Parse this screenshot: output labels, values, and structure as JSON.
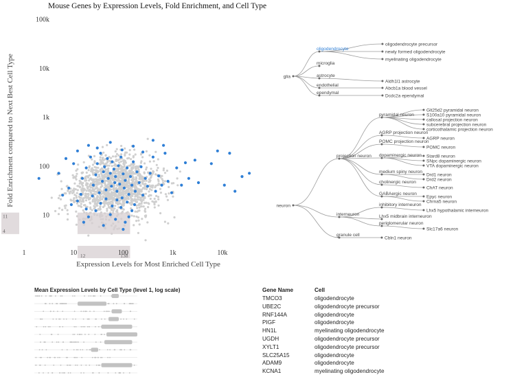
{
  "title": "Mouse Genes by Expression Levels, Fold Enrichment, and Cell Type",
  "chart_data": [
    {
      "type": "scatter",
      "xlabel": "Expression Levels for Most Enriched Cell Type",
      "ylabel": "Fold Enrichment compared to Next Best Cell Type",
      "x_scale": "log",
      "y_scale": "log",
      "xlim": [
        0.8,
        60000
      ],
      "ylim": [
        2.3,
        150000
      ],
      "x_ticks": [
        "1",
        "10",
        "100",
        "1k",
        "10k"
      ],
      "y_ticks": [
        "100k",
        "10k",
        "1k",
        "100",
        "10"
      ],
      "brush": {
        "x": [
          12,
          138
        ],
        "y": [
          4,
          11
        ],
        "x_labels": [
          "12",
          "138"
        ],
        "y_labels": [
          "11",
          "4"
        ]
      },
      "colors": {
        "background_points": "#cfcfcf",
        "highlighted_points": "#2f7fd6",
        "brush": "#d7cfd1"
      },
      "series": [
        {
          "name": "",
          "points": [
            [
              12,
              19
            ],
            [
              15,
              55
            ],
            [
              18,
              90
            ],
            [
              22,
              150
            ],
            [
              25,
              40
            ],
            [
              28,
              65
            ],
            [
              30,
              110
            ],
            [
              33,
              28
            ],
            [
              35,
              180
            ],
            [
              38,
              48
            ],
            [
              40,
              75
            ],
            [
              42,
              95
            ],
            [
              45,
              32
            ],
            [
              48,
              140
            ],
            [
              50,
              55
            ],
            [
              55,
              70
            ],
            [
              58,
              38
            ],
            [
              60,
              120
            ],
            [
              65,
              85
            ],
            [
              68,
              45
            ],
            [
              70,
              60
            ],
            [
              75,
              30
            ],
            [
              80,
              100
            ],
            [
              85,
              42
            ],
            [
              90,
              150
            ],
            [
              95,
              22
            ],
            [
              100,
              68
            ],
            [
              105,
              35
            ],
            [
              110,
              50
            ],
            [
              120,
              90
            ],
            [
              130,
              26
            ],
            [
              140,
              60
            ],
            [
              150,
              40
            ],
            [
              160,
              120
            ],
            [
              175,
              30
            ],
            [
              190,
              75
            ],
            [
              210,
              45
            ],
            [
              230,
              95
            ],
            [
              250,
              25
            ],
            [
              280,
              55
            ],
            [
              310,
              38
            ],
            [
              350,
              70
            ],
            [
              400,
              150
            ],
            [
              450,
              30
            ],
            [
              520,
              62
            ],
            [
              600,
              40
            ],
            [
              700,
              180
            ],
            [
              800,
              48
            ],
            [
              950,
              28
            ],
            [
              1200,
              90
            ],
            [
              1500,
              40
            ],
            [
              1800,
              115
            ],
            [
              2100,
              55
            ],
            [
              2800,
              130
            ],
            [
              3300,
              45
            ],
            [
              6000,
              110
            ],
            [
              8000,
              200
            ],
            [
              18000,
              30
            ],
            [
              25000,
              60
            ],
            [
              35000,
              70
            ],
            [
              2,
              55
            ],
            [
              5,
              70
            ],
            [
              8,
              35
            ],
            [
              10,
              110
            ],
            [
              6,
              25
            ],
            [
              9,
              16
            ],
            [
              16,
              7
            ],
            [
              20,
              9
            ],
            [
              28,
              12
            ],
            [
              40,
              6
            ],
            [
              55,
              10
            ],
            [
              70,
              8
            ],
            [
              90,
              14
            ],
            [
              110,
              7
            ],
            [
              130,
              9
            ],
            [
              150,
              12
            ],
            [
              18,
              13
            ],
            [
              35,
              17
            ],
            [
              60,
              15
            ],
            [
              100,
              5
            ],
            [
              14,
              26
            ],
            [
              24,
              24
            ],
            [
              45,
              21
            ],
            [
              75,
              20
            ],
            [
              120,
              18
            ],
            [
              170,
              16
            ],
            [
              7,
              140
            ],
            [
              12,
              200
            ],
            [
              20,
              260
            ],
            [
              30,
              230
            ],
            [
              55,
              300
            ],
            [
              95,
              210
            ],
            [
              160,
              250
            ],
            [
              250,
              190
            ],
            [
              400,
              330
            ],
            [
              650,
              260
            ],
            [
              14000,
              180
            ],
            [
              11000,
              40
            ]
          ]
        }
      ]
    },
    {
      "type": "table",
      "title": "Mean Expression Levels by Cell Type (level 1, log scale)",
      "rows": 11,
      "box_spans": [
        [
          0.75,
          0.82
        ],
        [
          0.42,
          0.7
        ],
        [
          0.75,
          0.85
        ],
        [
          0.72,
          0.82
        ],
        [
          0.65,
          0.95
        ],
        [
          0.7,
          1.0
        ],
        [
          0.68,
          0.95
        ],
        [
          0.55,
          0.62
        ],
        [
          0.0,
          0.0
        ],
        [
          0.65,
          0.95
        ],
        [
          0.0,
          0.0
        ]
      ]
    }
  ],
  "tree": {
    "nodes": {
      "glia": "glia",
      "oligodendrocyte": "oligodendrocyte",
      "oligo_precursor": "oligodendrocyte precursor",
      "newly_formed": "newly formed oligodendrocyte",
      "myelinating": "myelinating oligodendrocyte",
      "microglia": "microglia",
      "astrocyte": "astrocyte",
      "aldh1l1": "Aldh1l1 astrocyte",
      "endothelial": "endothelial",
      "abcb1a": "Abcb1a blood vessel",
      "ependymal": "ependymal",
      "dcdc2a": "Dcdc2a ependymal",
      "neuron": "neuron",
      "projection_neuron": "projection neuron",
      "pyramidal_neuron": "pyramidal neuron",
      "glt25d2": "Glt25d2 pyramidal neuron",
      "s100a10": "S100a10 pyramidal neuron",
      "callosal": "callosal projection neuron",
      "subcerebral": "subcerebral projection neuron",
      "corticothalamic": "corticothalamic projection neuron",
      "agrp_proj": "AGRP projection neuron",
      "agrp": "AGRP neuron",
      "pomc_proj": "POMC projection neuron",
      "pomc": "POMC neuron",
      "dopaminergic": "dopaminergic neuron",
      "stard8": "Stard8 neuron",
      "snpc": "SNpc dopaminergic neuron",
      "vta": "VTA dopaminergic neuron",
      "msn": "medium spiny neuron",
      "drd1": "Drd1 neuron",
      "drd2": "Drd2 neuron",
      "cholinergic": "cholinergic neuron",
      "chat": "ChAT neuron",
      "gabaergic": "GABAergic neuron",
      "epyc": "Epyc neuron",
      "chrna5": "Chrna5 neuron",
      "interneuron": "interneuron",
      "inhibitory": "inhibitory interneuron",
      "lhx5_hyp": "Lhx5 hypothalamic interneuron",
      "lhx5_mid": "Lhx5 midbrain interneuron",
      "periglomerular": "periglomerular neuron",
      "slc17a6": "Slc17a6 neuron",
      "granule": "granule cell",
      "cbln1": "Cbln1 neuron"
    }
  },
  "gene_table": {
    "headers": {
      "gene": "Gene Name",
      "cell": "Cell"
    },
    "rows": [
      {
        "gene": "TMCO3",
        "cell": "oligodendrocyte"
      },
      {
        "gene": "UBE2C",
        "cell": "oligodendrocyte precursor"
      },
      {
        "gene": "RNF144A",
        "cell": "oligodendrocyte"
      },
      {
        "gene": "PIGF",
        "cell": "oligodendrocyte"
      },
      {
        "gene": "HN1L",
        "cell": "myelinating oligodendrocyte"
      },
      {
        "gene": "UGDH",
        "cell": "oligodendrocyte precursor"
      },
      {
        "gene": "XYLT1",
        "cell": "oligodendrocyte precursor"
      },
      {
        "gene": "SLC25A15",
        "cell": "oligodendrocyte"
      },
      {
        "gene": "ADAM9",
        "cell": "oligodendrocyte"
      },
      {
        "gene": "KCNA1",
        "cell": "myelinating oligodendrocyte"
      }
    ]
  },
  "colors": {
    "tree_link": "#9a9a9a",
    "tree_node": "#666666",
    "selected_node": "#2f7fd6",
    "text": "#444444"
  }
}
